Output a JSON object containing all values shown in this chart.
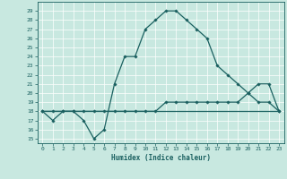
{
  "xlabel": "Humidex (Indice chaleur)",
  "x_ticks": [
    0,
    1,
    2,
    3,
    4,
    5,
    6,
    7,
    8,
    9,
    10,
    11,
    12,
    13,
    14,
    15,
    16,
    17,
    18,
    19,
    20,
    21,
    22,
    23
  ],
  "y_ticks": [
    15,
    16,
    17,
    18,
    19,
    20,
    21,
    22,
    23,
    24,
    25,
    26,
    27,
    28,
    29
  ],
  "xlim": [
    -0.5,
    23.5
  ],
  "ylim": [
    14.5,
    30.0
  ],
  "bg_color": "#c8e8e0",
  "line_color": "#1a6060",
  "line1_x": [
    0,
    1,
    2,
    3,
    4,
    5,
    6,
    7,
    8,
    9,
    10,
    11,
    12,
    13,
    14,
    15,
    16,
    17,
    18,
    19,
    20,
    21,
    22,
    23
  ],
  "line1_y": [
    18,
    17,
    18,
    18,
    17,
    15,
    16,
    21,
    24,
    24,
    27,
    28,
    29,
    29,
    28,
    27,
    26,
    23,
    22,
    21,
    20,
    19,
    19,
    18
  ],
  "line2_x": [
    0,
    1,
    2,
    3,
    4,
    5,
    6,
    7,
    8,
    9,
    10,
    11,
    12,
    13,
    14,
    15,
    16,
    17,
    18,
    19,
    20,
    21,
    22,
    23
  ],
  "line2_y": [
    18,
    18,
    18,
    18,
    18,
    18,
    18,
    18,
    18,
    18,
    18,
    18,
    19,
    19,
    19,
    19,
    19,
    19,
    19,
    19,
    20,
    21,
    21,
    18
  ],
  "line3_x": [
    0,
    23
  ],
  "line3_y": [
    18,
    18
  ]
}
